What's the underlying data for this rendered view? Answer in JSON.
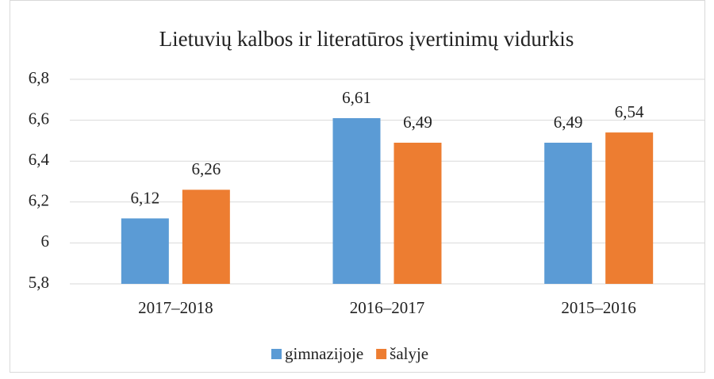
{
  "chart_data": {
    "type": "bar",
    "title": "Lietuvių kalbos ir literatūros įvertinimų vidurkis",
    "categories": [
      "2017–2018",
      "2016–2017",
      "2015–2016"
    ],
    "series": [
      {
        "name": "gimnazijoje",
        "color": "#5b9bd5",
        "values": [
          6.12,
          6.61,
          6.49
        ],
        "value_labels": [
          "6,12",
          "6,61",
          "6,49"
        ]
      },
      {
        "name": "šalyje",
        "color": "#ed7d31",
        "values": [
          6.26,
          6.49,
          6.54
        ],
        "value_labels": [
          "6,26",
          "6,49",
          "6,54"
        ]
      }
    ],
    "ylim": [
      5.8,
      6.8
    ],
    "yticks": [
      {
        "value": 5.8,
        "label": "5,8"
      },
      6,
      {
        "value": 6.2,
        "label": "6,2"
      },
      {
        "value": 6.4,
        "label": "6,4"
      },
      {
        "value": 6.6,
        "label": "6,6"
      },
      {
        "value": 6.8,
        "label": "6,8"
      }
    ],
    "grid": true,
    "legend": "bottom"
  }
}
